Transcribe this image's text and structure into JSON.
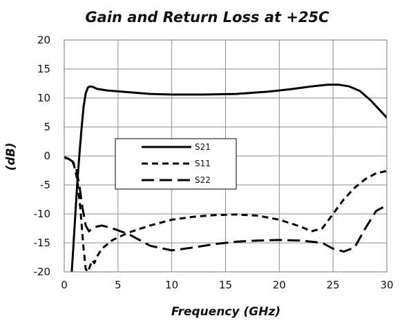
{
  "chart_data": {
    "type": "line",
    "title": "Gain and Return Loss at +25C",
    "xlabel": "Frequency (GHz)",
    "ylabel": "(dB)",
    "xlim": [
      0,
      30
    ],
    "ylim": [
      -20,
      20
    ],
    "xticks": [
      "0",
      "5",
      "10",
      "15",
      "20",
      "25",
      "30"
    ],
    "yticks": [
      "20",
      "15",
      "10",
      "5",
      "0",
      "-5",
      "-10",
      "-15",
      "-20"
    ],
    "grid": true,
    "legend_position": "center-left",
    "series": [
      {
        "name": "S21",
        "color": "#000000",
        "dash": "solid",
        "x": [
          0.7,
          0.8,
          1.0,
          1.2,
          1.4,
          1.6,
          1.8,
          2.0,
          2.2,
          2.4,
          2.7,
          3.0,
          4.0,
          6.0,
          8.0,
          10.0,
          13.0,
          16.0,
          19.0,
          21.0,
          23.0,
          24.5,
          25.5,
          26.5,
          27.5,
          28.5,
          29.3,
          30.0
        ],
        "y": [
          -20,
          -17,
          -11,
          -5,
          0,
          4.5,
          8.5,
          10.8,
          11.8,
          12.0,
          11.9,
          11.6,
          11.3,
          11.0,
          10.7,
          10.6,
          10.6,
          10.7,
          11.1,
          11.5,
          12.0,
          12.3,
          12.3,
          12.0,
          11.2,
          9.6,
          8.0,
          6.6
        ]
      },
      {
        "name": "S11",
        "color": "#000000",
        "dash": "short",
        "x": [
          0.0,
          0.3,
          0.6,
          0.9,
          1.2,
          1.5,
          1.8,
          2.0,
          2.2,
          2.4,
          2.6,
          2.8,
          3.0,
          3.5,
          4.5,
          6.0,
          8.0,
          10.0,
          12.0,
          14.0,
          16.0,
          18.0,
          20.0,
          22.0,
          23.0,
          24.0,
          25.0,
          26.0,
          27.0,
          28.0,
          29.0,
          30.0
        ],
        "y": [
          -0.2,
          -0.4,
          -0.7,
          -1.5,
          -4.0,
          -9.0,
          -16.0,
          -19.5,
          -20.0,
          -19.0,
          -18.0,
          -18.5,
          -17.5,
          -16.0,
          -14.5,
          -13.2,
          -12.0,
          -11.0,
          -10.5,
          -10.2,
          -10.1,
          -10.3,
          -11.0,
          -12.2,
          -13.0,
          -12.5,
          -10.0,
          -7.5,
          -5.5,
          -4.0,
          -3.0,
          -2.6
        ]
      },
      {
        "name": "S22",
        "color": "#000000",
        "dash": "long",
        "x": [
          0.0,
          0.4,
          0.8,
          1.1,
          1.4,
          1.7,
          2.0,
          2.3,
          2.6,
          3.0,
          3.5,
          4.5,
          6.0,
          8.0,
          10.0,
          12.0,
          14.0,
          16.0,
          18.0,
          20.0,
          22.0,
          24.0,
          25.0,
          26.0,
          27.0,
          28.0,
          29.0,
          30.0
        ],
        "y": [
          -0.3,
          -0.5,
          -1.0,
          -2.0,
          -5.0,
          -9.0,
          -12.0,
          -13.0,
          -12.5,
          -12.2,
          -12.0,
          -12.5,
          -13.5,
          -15.5,
          -16.3,
          -15.8,
          -15.2,
          -14.8,
          -14.6,
          -14.5,
          -14.6,
          -15.0,
          -16.0,
          -16.5,
          -15.8,
          -12.5,
          -9.5,
          -8.5
        ]
      }
    ]
  }
}
